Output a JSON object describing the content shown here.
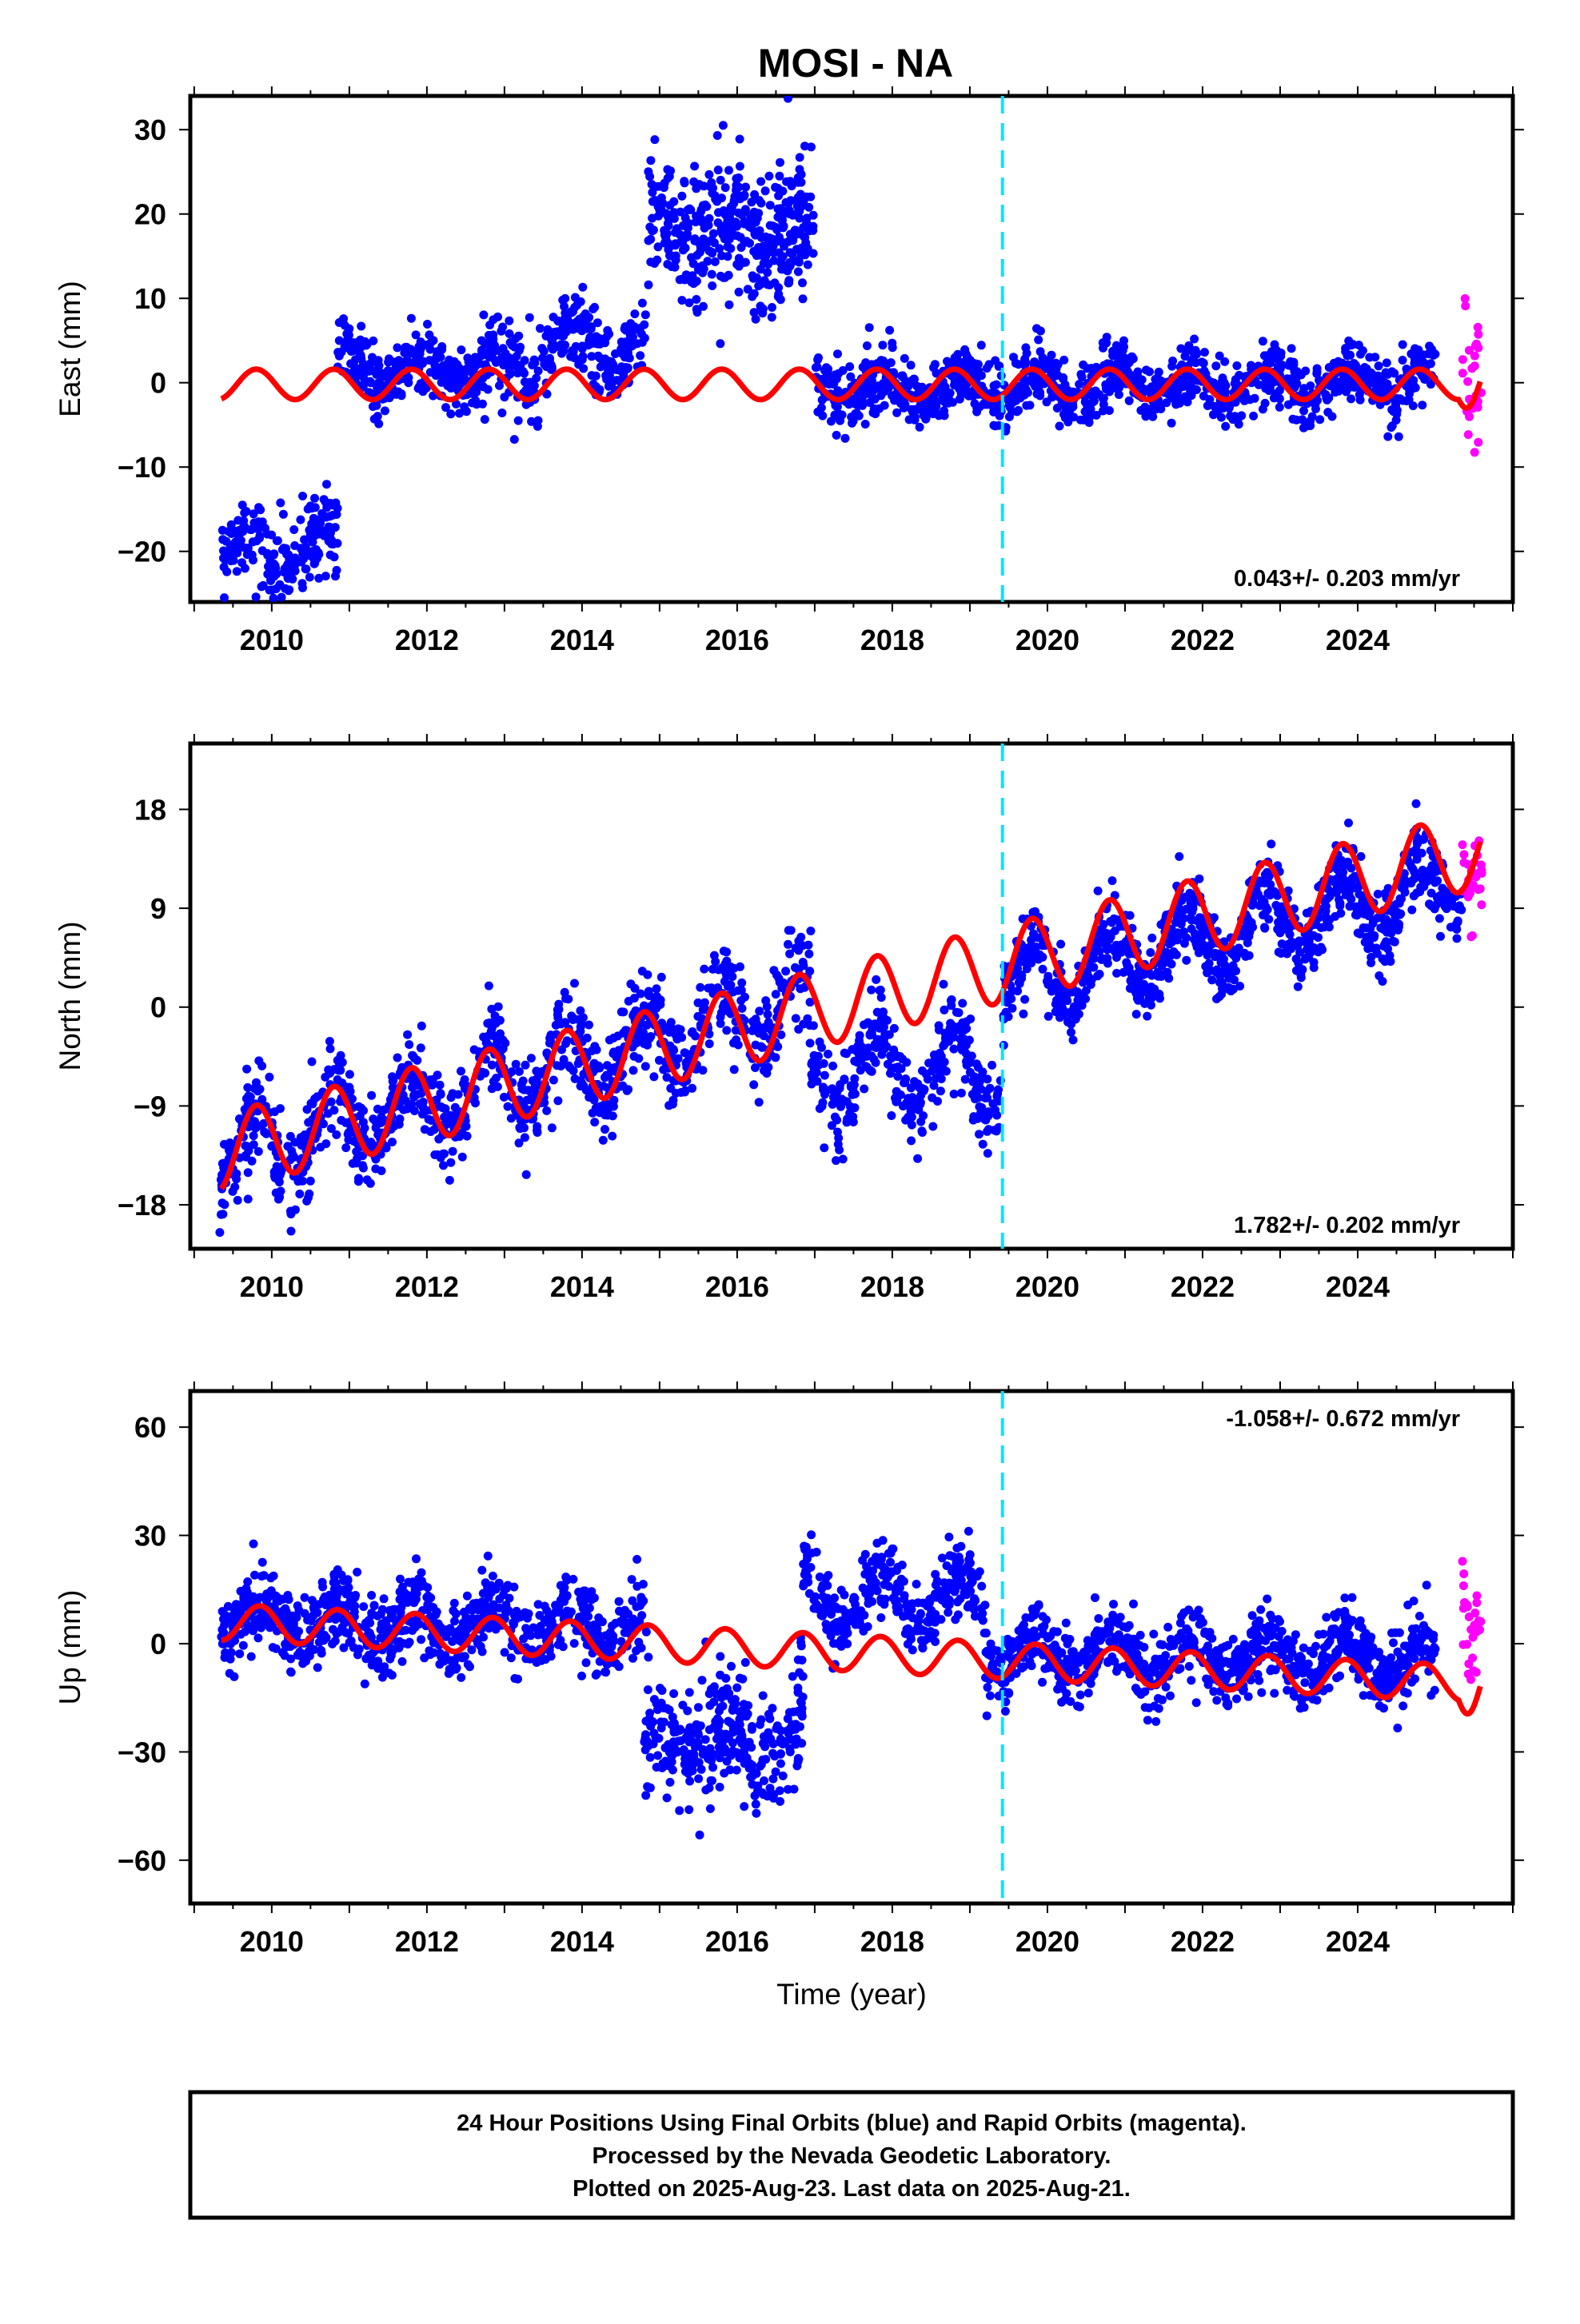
{
  "title": "MOSI - NA",
  "colors": {
    "final_orbit_points": "#0000ff",
    "rapid_orbit_points": "#ff00ff",
    "model_curve": "#ff0000",
    "equipment_change_line": "#00e5ff",
    "frame": "#000000"
  },
  "chart_data": [
    {
      "type": "scatter",
      "panel": "east",
      "ylabel": "East (mm)",
      "xlabel": "",
      "xlim": [
        2008.95,
        2026.0
      ],
      "ylim": [
        -26,
        34
      ],
      "yticks": [
        -20,
        -10,
        0,
        10,
        20,
        30
      ],
      "ytick_labels": [
        "−20",
        "−10",
        "0",
        "10",
        "20",
        "30"
      ],
      "xticks": [
        2010,
        2012,
        2014,
        2016,
        2018,
        2020,
        2022,
        2024
      ],
      "xtick_labels": [
        "2010",
        "2012",
        "2014",
        "2016",
        "2018",
        "2020",
        "2022",
        "2024"
      ],
      "rate": "0.043+/- 0.203 mm/yr",
      "rate_position": "bottom-right",
      "vertical_marker_year": 2019.42,
      "grid": false,
      "series": [
        {
          "name": "",
          "kind": "final",
          "segments": [
            {
              "t0": 2009.33,
              "t1": 2010.85,
              "base": -20,
              "trend": 0,
              "amp": 2.2,
              "phase": 0.45,
              "noise": 2.6,
              "count": 220
            },
            {
              "t0": 2010.85,
              "t1": 2013.45,
              "base": 1.5,
              "trend": 0,
              "amp": 1.5,
              "phase": 0.65,
              "noise": 2.2,
              "count": 380
            },
            {
              "t0": 2013.45,
              "t1": 2014.85,
              "base": 4.0,
              "trend": 0,
              "amp": 2.8,
              "phase": 0.65,
              "noise": 2.5,
              "count": 200
            },
            {
              "t0": 2014.85,
              "t1": 2017.0,
              "base": 18.0,
              "trend": 0,
              "amp": 2.0,
              "phase": 0.65,
              "noise": 4.2,
              "count": 420
            },
            {
              "t0": 2017.0,
              "t1": 2025.0,
              "base": -0.8,
              "trend": 0.12,
              "amp": 1.6,
              "phase": 0.65,
              "noise": 1.8,
              "count": 1150
            }
          ]
        },
        {
          "name": "",
          "kind": "rapid",
          "t0": 2025.35,
          "t1": 2025.6,
          "base": 1.0,
          "amp": 0,
          "phase": 0,
          "noise": 3.8,
          "count": 28
        }
      ],
      "model": {
        "t0": 2009.35,
        "t1": 2025.58,
        "base": -0.2,
        "trend": 0.0,
        "amp": 1.8,
        "phase": 0.55,
        "dip_year": 2025.3,
        "dip": -1.5
      }
    },
    {
      "type": "scatter",
      "panel": "north",
      "ylabel": "North (mm)",
      "xlabel": "",
      "xlim": [
        2008.95,
        2026.0
      ],
      "ylim": [
        -22,
        24
      ],
      "yticks": [
        -18,
        -9,
        0,
        9,
        18
      ],
      "ytick_labels": [
        "−18",
        "−9",
        "0",
        "9",
        "18"
      ],
      "xticks": [
        2010,
        2012,
        2014,
        2016,
        2018,
        2020,
        2022,
        2024
      ],
      "xtick_labels": [
        "2010",
        "2012",
        "2014",
        "2016",
        "2018",
        "2020",
        "2022",
        "2024"
      ],
      "rate": "1.782+/- 0.202 mm/yr",
      "rate_position": "bottom-right",
      "vertical_marker_year": 2019.42,
      "grid": false,
      "series": [
        {
          "name": "",
          "kind": "final",
          "segments": [
            {
              "t0": 2009.33,
              "t1": 2016.95,
              "base": -13.5,
              "trend": 1.85,
              "amp": 3.2,
              "phase": 0.55,
              "noise": 2.1,
              "count": 1050
            },
            {
              "t0": 2016.95,
              "t1": 2019.42,
              "base": -6.0,
              "trend": 0.0,
              "amp": 3.5,
              "phase": 0.55,
              "noise": 2.0,
              "count": 320
            },
            {
              "t0": 2019.42,
              "t1": 2025.35,
              "base": 2.0,
              "trend": 1.6,
              "amp": 3.0,
              "phase": 0.55,
              "noise": 1.8,
              "count": 900
            }
          ]
        },
        {
          "name": "",
          "kind": "rapid",
          "t0": 2025.35,
          "t1": 2025.6,
          "base": 11.5,
          "amp": 0,
          "phase": 0,
          "noise": 2.4,
          "count": 28
        }
      ],
      "model": {
        "t0": 2009.35,
        "t1": 2025.58,
        "base": -13.2,
        "trend": 1.7,
        "amp": 3.5,
        "phase": 0.55,
        "dip_year": 0,
        "dip": 0
      }
    },
    {
      "type": "scatter",
      "panel": "up",
      "ylabel": "Up (mm)",
      "xlabel": "Time (year)",
      "xlim": [
        2008.95,
        2026.0
      ],
      "ylim": [
        -72,
        70
      ],
      "yticks": [
        -60,
        -30,
        0,
        30,
        60
      ],
      "ytick_labels": [
        "−60",
        "−30",
        "0",
        "30",
        "60"
      ],
      "xticks": [
        2010,
        2012,
        2014,
        2016,
        2018,
        2020,
        2022,
        2024
      ],
      "xtick_labels": [
        "2010",
        "2012",
        "2014",
        "2016",
        "2018",
        "2020",
        "2022",
        "2024"
      ],
      "rate": "-1.058+/- 0.672 mm/yr",
      "rate_position": "top-right",
      "vertical_marker_year": 2019.42,
      "grid": false,
      "series": [
        {
          "name": "",
          "kind": "final",
          "segments": [
            {
              "t0": 2009.33,
              "t1": 2014.8,
              "base": 7.0,
              "trend": -0.5,
              "amp": 5.5,
              "phase": 0.6,
              "noise": 5.5,
              "count": 800
            },
            {
              "t0": 2014.8,
              "t1": 2016.85,
              "base": -27.0,
              "trend": 0,
              "amp": 5.0,
              "phase": 0.6,
              "noise": 8.0,
              "count": 320
            },
            {
              "t0": 2016.85,
              "t1": 2019.2,
              "base": 12.0,
              "trend": 0,
              "amp": 7.0,
              "phase": 0.6,
              "noise": 5.0,
              "count": 320
            },
            {
              "t0": 2019.2,
              "t1": 2025.0,
              "base": -3.0,
              "trend": -0.3,
              "amp": 5.5,
              "phase": 0.6,
              "noise": 5.0,
              "count": 850
            }
          ]
        },
        {
          "name": "",
          "kind": "rapid",
          "t0": 2025.35,
          "t1": 2025.6,
          "base": 5.0,
          "amp": 0,
          "phase": 0,
          "noise": 8.0,
          "count": 28
        }
      ],
      "model": {
        "t0": 2009.35,
        "t1": 2025.58,
        "base": 6.0,
        "trend": -1.06,
        "amp": 5.0,
        "phase": 0.6,
        "dip_year": 2025.3,
        "dip": -4
      }
    }
  ],
  "caption": {
    "lines": [
      "24 Hour Positions Using Final Orbits (blue) and Rapid Orbits (magenta).",
      "Processed by the Nevada Geodetic Laboratory.",
      "Plotted on 2025-Aug-23. Last data on 2025-Aug-21."
    ]
  }
}
